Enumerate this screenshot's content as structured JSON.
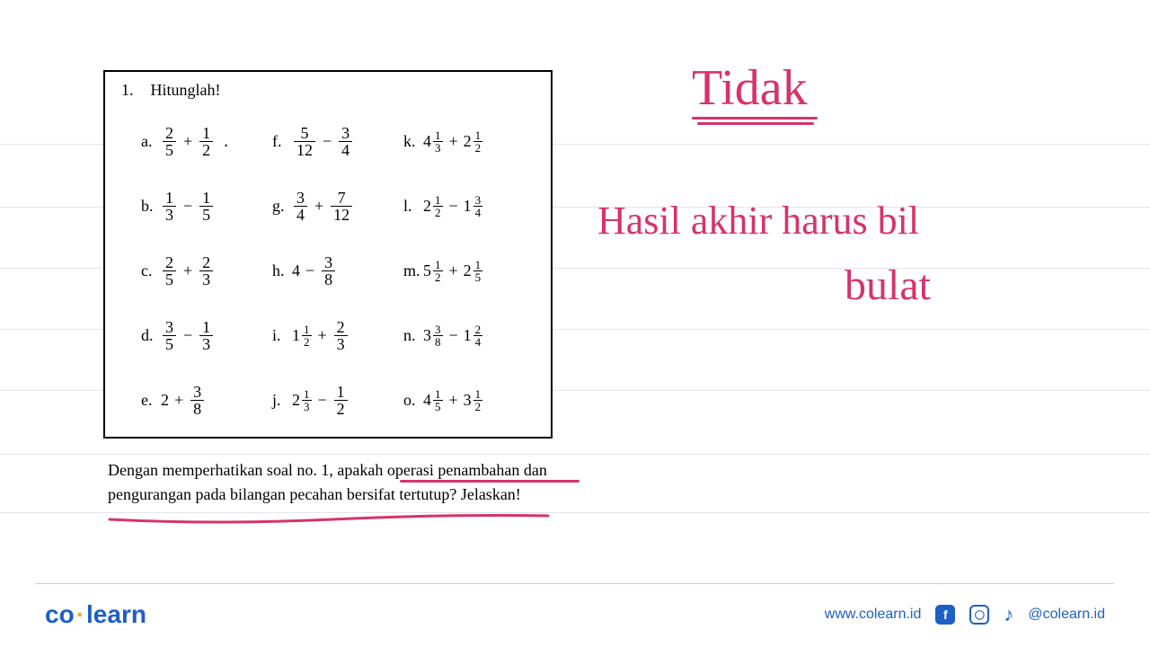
{
  "box": {
    "number": "1.",
    "title": "Hitunglah!",
    "problems": {
      "a": {
        "label": "a.",
        "type": "ff",
        "n1": "2",
        "d1": "5",
        "op": "+",
        "n2": "1",
        "d2": "2",
        "trail": "."
      },
      "b": {
        "label": "b.",
        "type": "ff",
        "n1": "1",
        "d1": "3",
        "op": "−",
        "n2": "1",
        "d2": "5"
      },
      "c": {
        "label": "c.",
        "type": "ff",
        "n1": "2",
        "d1": "5",
        "op": "+",
        "n2": "2",
        "d2": "3"
      },
      "d": {
        "label": "d.",
        "type": "ff",
        "n1": "3",
        "d1": "5",
        "op": "−",
        "n2": "1",
        "d2": "3"
      },
      "e": {
        "label": "e.",
        "type": "wf",
        "w1": "2",
        "op": "+",
        "n2": "3",
        "d2": "8"
      },
      "f": {
        "label": "f.",
        "type": "ff",
        "n1": "5",
        "d1": "12",
        "op": "−",
        "n2": "3",
        "d2": "4"
      },
      "g": {
        "label": "g.",
        "type": "ff",
        "n1": "3",
        "d1": "4",
        "op": "+",
        "n2": "7",
        "d2": "12"
      },
      "h": {
        "label": "h.",
        "type": "wf",
        "w1": "4",
        "op": "−",
        "n2": "3",
        "d2": "8"
      },
      "i": {
        "label": "i.",
        "type": "mf",
        "w1": "1",
        "sn1": "1",
        "sd1": "2",
        "op": "+",
        "n2": "2",
        "d2": "3"
      },
      "j": {
        "label": "j.",
        "type": "mf",
        "w1": "2",
        "sn1": "1",
        "sd1": "3",
        "op": "−",
        "n2": "1",
        "d2": "2"
      },
      "k": {
        "label": "k.",
        "type": "mm",
        "w1": "4",
        "sn1": "1",
        "sd1": "3",
        "op": "+",
        "w2": "2",
        "sn2": "1",
        "sd2": "2"
      },
      "l": {
        "label": "l.",
        "type": "mm",
        "w1": "2",
        "sn1": "1",
        "sd1": "2",
        "op": "−",
        "w2": "1",
        "sn2": "3",
        "sd2": "4"
      },
      "m": {
        "label": "m.",
        "type": "mm",
        "w1": "5",
        "sn1": "1",
        "sd1": "2",
        "op": "+",
        "w2": "2",
        "sn2": "1",
        "sd2": "5"
      },
      "n": {
        "label": "n.",
        "type": "mm",
        "w1": "3",
        "sn1": "3",
        "sd1": "8",
        "op": "−",
        "w2": "1",
        "sn2": "2",
        "sd2": "4"
      },
      "o": {
        "label": "o.",
        "type": "mm",
        "w1": "4",
        "sn1": "1",
        "sd1": "5",
        "op": "+",
        "w2": "3",
        "sn2": "1",
        "sd2": "2"
      }
    },
    "order": [
      "a",
      "f",
      "k",
      "b",
      "g",
      "l",
      "c",
      "h",
      "m",
      "d",
      "i",
      "n",
      "e",
      "j",
      "o"
    ]
  },
  "caption": {
    "line1": "Dengan memperhatikan soal no. 1, apakah operasi penambahan dan",
    "line2": "pengurangan pada bilangan pecahan bersifat tertutup? Jelaskan!"
  },
  "handwriting": {
    "note1": "Tidak",
    "note2": "Hasil akhir harus bil",
    "note3": "bulat",
    "color": "#d6336c"
  },
  "ruled": {
    "positions": [
      160,
      230,
      298,
      366,
      434,
      505,
      570
    ],
    "color": "#e5e5e5"
  },
  "footer": {
    "brand_co": "co",
    "brand_dot": "·",
    "brand_learn": "learn",
    "url": "www.colearn.id",
    "handle": "@colearn.id",
    "brand_color": "#1e5fc7",
    "dot_color": "#f5a623"
  }
}
